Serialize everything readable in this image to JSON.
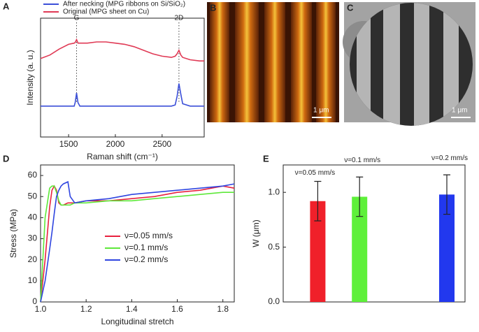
{
  "panel_labels": [
    "A",
    "B",
    "C",
    "D",
    "E"
  ],
  "images": [
    {
      "scale_bar": "1 μm"
    },
    {
      "scale_bar": "1 μm"
    }
  ],
  "chart_data": [
    {
      "type": "line",
      "x_label": "Raman shift (cm⁻¹)",
      "y_label": "Intensity (a. u.)",
      "x": [
        1200,
        1300,
        1400,
        1500,
        1560,
        1570,
        1585,
        1600,
        1620,
        1700,
        1800,
        1900,
        2000,
        2100,
        2200,
        2300,
        2400,
        2500,
        2600,
        2640,
        2660,
        2680,
        2700,
        2720,
        2800,
        2900,
        2950
      ],
      "series": [
        {
          "name": "After necking (MPG ribbons on Si/SiO₂)",
          "color": "#3b4fd8",
          "values": [
            2.6,
            2.6,
            2.6,
            2.6,
            2.6,
            2.9,
            3.7,
            2.9,
            2.6,
            2.6,
            2.6,
            2.6,
            2.6,
            2.6,
            2.6,
            2.6,
            2.6,
            2.6,
            2.6,
            2.7,
            3.4,
            4.5,
            3.6,
            2.8,
            2.6,
            2.6,
            2.6
          ]
        },
        {
          "name": "Original (MPG sheet on Cu)",
          "color": "#e03a55",
          "values": [
            6.6,
            6.9,
            7.4,
            7.8,
            7.9,
            7.95,
            8.2,
            7.9,
            7.9,
            7.9,
            8.0,
            8.0,
            7.9,
            7.8,
            7.6,
            7.3,
            7.0,
            6.8,
            6.7,
            6.8,
            7.0,
            7.3,
            6.9,
            6.7,
            6.5,
            6.4,
            6.4
          ]
        }
      ],
      "annotations": [
        {
          "text": "G",
          "x": 1585
        },
        {
          "text": "2D",
          "x": 2680
        }
      ],
      "xlim": [
        1200,
        2950
      ],
      "ylim": [
        0,
        10
      ],
      "xticks": [
        1500,
        2000,
        2500
      ]
    },
    {
      "type": "line",
      "x_label": "Longitudinal stretch",
      "y_label": "Stress (MPa)",
      "x": [
        1.0,
        1.02,
        1.04,
        1.05,
        1.06,
        1.07,
        1.08,
        1.09,
        1.1,
        1.12,
        1.13,
        1.15,
        1.2,
        1.3,
        1.4,
        1.5,
        1.6,
        1.7,
        1.8,
        1.85
      ],
      "series": [
        {
          "name": "ν=0.05 mm/s",
          "color": "#e8213f",
          "values": [
            0,
            20,
            45,
            53,
            55,
            53,
            47,
            46,
            46,
            47,
            47,
            47,
            48,
            48,
            49,
            50,
            52,
            53,
            55,
            54
          ]
        },
        {
          "name": "ν=0.1 mm/s",
          "color": "#5ee83a",
          "values": [
            0,
            40,
            54,
            55,
            55,
            52,
            48,
            46,
            46,
            46,
            46,
            47,
            47,
            48,
            48,
            49,
            50,
            51,
            52,
            52
          ]
        },
        {
          "name": "ν=0.2 mm/s",
          "color": "#2f45e0",
          "values": [
            0,
            10,
            25,
            33,
            42,
            50,
            53,
            55,
            56,
            57,
            50,
            47,
            48,
            49,
            51,
            52,
            53,
            54,
            55,
            56
          ]
        }
      ],
      "xlim": [
        1.0,
        1.85
      ],
      "ylim": [
        0,
        65
      ],
      "xticks": [
        {
          "value": 1,
          "label": "1.0"
        },
        {
          "value": 1.2,
          "label": "1.2"
        },
        {
          "value": 1.4,
          "label": "1.4"
        },
        {
          "value": 1.6,
          "label": "1.6"
        },
        {
          "value": 1.8,
          "label": "1.8"
        }
      ],
      "yticks": [
        0,
        10,
        20,
        30,
        40,
        50,
        60
      ]
    },
    {
      "type": "bar",
      "y_label": "W (μm)",
      "categories": [
        "ν=0.05 mm/s",
        "ν=0.1 mm/s",
        "ν=0.2 mm/s"
      ],
      "values": [
        0.92,
        0.96,
        0.98
      ],
      "errors": [
        0.18,
        0.18,
        0.18
      ],
      "colors": [
        "#f0202a",
        "#5ef03a",
        "#2238ee"
      ],
      "ylim": [
        0,
        1.25
      ],
      "yticks": [
        {
          "value": 0,
          "label": "0.0"
        },
        {
          "value": 0.5,
          "label": "0.5"
        },
        {
          "value": 1,
          "label": "1.0"
        }
      ]
    }
  ]
}
